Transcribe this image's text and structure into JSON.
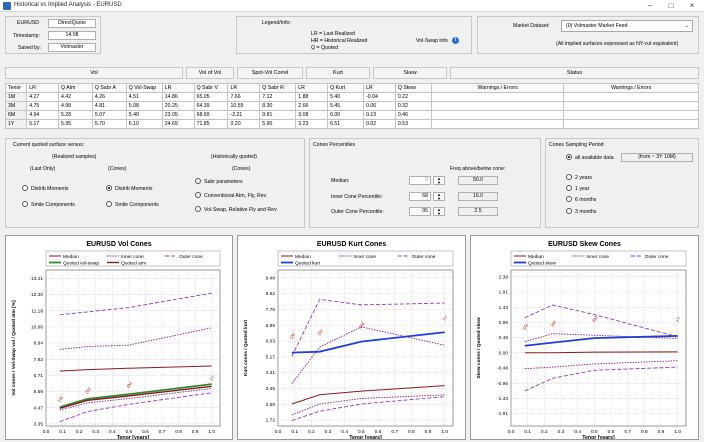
{
  "window": {
    "title": "Historical vs Implied Analysis - EURUSD"
  },
  "header": {
    "symbol": "EURUSD",
    "quote_type": "DirectQuote",
    "timestamp_label": "Timestamp:",
    "timestamp": "14:08",
    "saved_by_label": "Saved by:",
    "saved_by": "Volmaster"
  },
  "legend": {
    "title": "Legend/Info:",
    "lines": [
      "LR  = Last Realized",
      "HR  = Historical Realized",
      "Q    = Quoted"
    ],
    "volswap_info": "Vol-Swap info"
  },
  "market": {
    "label": "Market Dataset:",
    "value": "(0) Volmaster Market Feed",
    "note": "(All implied surfaces expressed as NY-cut equivalent)"
  },
  "group_headers": [
    "Vol",
    "Vol of Vol",
    "Spot-Vol Correl",
    "Kurt",
    "Skew",
    "Status"
  ],
  "table": {
    "columns": [
      "Tenor",
      "LR",
      "Q Atm",
      "Q Sabr A",
      "Q Vol-Swap",
      "LR",
      "Q Sabr V",
      "LR",
      "Q Sabr R",
      "LR",
      "Q Kurt",
      "LR",
      "Q Skew",
      "Warnings / Errors",
      "Warnings / Errors"
    ],
    "rows": [
      [
        "1M",
        "4.27",
        "4.42",
        "4.26",
        "4.51",
        "14.86",
        "65.05",
        "7.66",
        "7.12",
        "1.88",
        "5.40",
        "-0.04",
        "0.22",
        "",
        ""
      ],
      [
        "3M",
        "4.75",
        "4.98",
        "4.81",
        "5.08",
        "20.25",
        "64.39",
        "10.55",
        "8.30",
        "2.66",
        "5.45",
        "0.06",
        "0.32",
        "",
        ""
      ],
      [
        "6M",
        "4.94",
        "5.28",
        "5.07",
        "5.40",
        "23.05",
        "68.69",
        "-2.21",
        "9.81",
        "3.08",
        "6.00",
        "0.13",
        "0.46",
        "",
        ""
      ],
      [
        "1Y",
        "5.17",
        "5.95",
        "5.70",
        "6.10",
        "24.69",
        "71.85",
        "0.20",
        "5.90",
        "3.23",
        "6.51",
        "0.02",
        "0.53",
        "",
        ""
      ]
    ]
  },
  "surface": {
    "title": "Current quoted surface versus:",
    "realized_label": "(Realized samples)",
    "last_only": "(Last Only)",
    "cones_label": "(Cones)",
    "hist_label": "(Historically quoted)",
    "hist_cones_label": "(Cones)",
    "options_left": [
      "Distrib Moments",
      "Smile Components"
    ],
    "options_mid": [
      "Distrib Moments",
      "Smile Components"
    ],
    "options_right": [
      "Sabr parameters",
      "Conventional Atm, Fly, Rev",
      "Vol-Swap, Relative Fly and Rev"
    ]
  },
  "percentiles": {
    "title": "Cones Percentiles",
    "freq_label": "Freq above/below cone:",
    "rows": [
      {
        "label": "Median:",
        "value": "0",
        "freq": "50.0"
      },
      {
        "label": "Inner Cone Percentile:",
        "value": "68",
        "freq": "16.0"
      },
      {
        "label": "Outer Cone Percentile:",
        "value": "95",
        "freq": "2.5"
      }
    ]
  },
  "sampling": {
    "title": "Cones Sampling Period",
    "all_label": "all available data",
    "all_range": "(from ~ 3Y 10M)",
    "options": [
      "2 years",
      "1 year",
      "6 months",
      "3 months"
    ]
  },
  "colors": {
    "median": "#8b1a1a",
    "inner": "#8b1a8b",
    "outer": "#9932cc",
    "quoted": "#1f3fd6",
    "volswap": "#2e8b2e"
  },
  "chart_data": [
    {
      "type": "line",
      "title": "EURUSD   Vol Cones",
      "xlabel": "Tenor [years]",
      "ylabel": "Vol cones / Vol-Swap vol / Quoted atm [%]",
      "xlim": [
        0,
        1.05
      ],
      "ylim": [
        3.2,
        14.0
      ],
      "xticks": [
        "0.0",
        "0.1",
        "0.2",
        "0.3",
        "0.4",
        "0.5",
        "0.6",
        "0.7",
        "0.8",
        "0.9",
        "1.0"
      ],
      "yticks": [
        "3.35",
        "4.47",
        "5.59",
        "6.71",
        "7.82",
        "8.94",
        "10.06",
        "11.18",
        "12.30",
        "13.41"
      ],
      "legend": [
        "Median",
        "Inner cone",
        "Outer cone",
        "Quoted vol-swap",
        "Quoted atm"
      ],
      "x": [
        0.083,
        0.25,
        0.5,
        1.0
      ],
      "series": [
        {
          "name": "Outer cone",
          "values": [
            10.9,
            11.1,
            11.4,
            12.4
          ]
        },
        {
          "name": "Inner cone",
          "values": [
            8.5,
            8.7,
            8.8,
            10.0
          ]
        },
        {
          "name": "Median",
          "values": [
            7.0,
            7.1,
            7.2,
            7.35
          ]
        },
        {
          "name": "Quoted vol-swap",
          "values": [
            4.51,
            5.08,
            5.4,
            6.1
          ]
        },
        {
          "name": "Quoted atm",
          "values": [
            4.42,
            4.98,
            5.28,
            5.95
          ]
        },
        {
          "name": "Inner cone",
          "values": [
            4.3,
            4.8,
            5.1,
            5.8
          ]
        },
        {
          "name": "Outer cone",
          "values": [
            3.5,
            4.2,
            4.7,
            5.5
          ]
        }
      ],
      "tenor_labels": [
        "1M",
        "3M",
        "6M",
        "1Y"
      ],
      "label_values": [
        4.8,
        5.4,
        5.8,
        6.3
      ]
    },
    {
      "type": "line",
      "title": "EURUSD   Kurt Cones",
      "xlabel": "Tenor [years]",
      "ylabel": "Kurt cones / Quoted kurt",
      "xlim": [
        0,
        1.05
      ],
      "ylim": [
        1.4,
        9.9
      ],
      "xticks": [
        "0.0",
        "0.1",
        "0.2",
        "0.3",
        "0.4",
        "0.5",
        "0.6",
        "0.7",
        "0.8",
        "0.9",
        "1.0"
      ],
      "yticks": [
        "1.72",
        "2.58",
        "3.45",
        "4.31",
        "5.17",
        "6.03",
        "6.89",
        "7.76",
        "8.62",
        "9.48"
      ],
      "legend": [
        "Median",
        "Inner cone",
        "Outer cone",
        "Quoted kurt"
      ],
      "x": [
        0.083,
        0.25,
        0.5,
        1.0
      ],
      "series": [
        {
          "name": "Outer cone",
          "values": [
            5.2,
            8.3,
            8.0,
            8.1
          ]
        },
        {
          "name": "Inner cone",
          "values": [
            3.7,
            5.7,
            6.8,
            5.8
          ]
        },
        {
          "name": "Median",
          "values": [
            2.6,
            3.1,
            3.3,
            3.6
          ]
        },
        {
          "name": "Inner cone",
          "values": [
            2.0,
            2.6,
            2.9,
            3.1
          ]
        },
        {
          "name": "Outer cone",
          "values": [
            1.7,
            2.2,
            2.6,
            3.0
          ]
        },
        {
          "name": "Quoted kurt",
          "values": [
            5.4,
            5.45,
            6.0,
            6.51
          ]
        }
      ],
      "tenor_labels": [
        "1M",
        "3M",
        "6M",
        "1Y"
      ],
      "label_values": [
        6.1,
        6.3,
        6.7,
        7.1
      ]
    },
    {
      "type": "line",
      "title": "EURUSD   Skew Cones",
      "xlabel": "Tenor [years]",
      "ylabel": "Skew cones / Quoted skew",
      "xlim": [
        0,
        1.05
      ],
      "ylim": [
        -2.3,
        2.6
      ],
      "xticks": [
        "0.0",
        "0.1",
        "0.2",
        "0.3",
        "0.4",
        "0.5",
        "0.6",
        "0.7",
        "0.8",
        "0.9",
        "1.0"
      ],
      "yticks": [
        "-1.91",
        "-1.43",
        "-0.96",
        "-0.48",
        "0.00",
        "0.48",
        "0.96",
        "1.43",
        "1.91",
        "2.39"
      ],
      "legend": [
        "Median",
        "Inner cone",
        "Outer cone",
        "Quoted skew"
      ],
      "x": [
        0.083,
        0.25,
        0.5,
        1.0
      ],
      "series": [
        {
          "name": "Outer cone",
          "values": [
            1.1,
            1.5,
            1.2,
            0.5
          ]
        },
        {
          "name": "Inner cone",
          "values": [
            0.35,
            0.6,
            0.55,
            0.45
          ]
        },
        {
          "name": "Median",
          "values": [
            0.0,
            0.0,
            0.02,
            0.03
          ]
        },
        {
          "name": "Inner cone",
          "values": [
            -0.5,
            -0.45,
            -0.35,
            -0.25
          ]
        },
        {
          "name": "Outer cone",
          "values": [
            -1.2,
            -0.8,
            -0.55,
            -0.45
          ]
        },
        {
          "name": "Quoted skew",
          "values": [
            0.22,
            0.32,
            0.46,
            0.53
          ]
        }
      ],
      "tenor_labels": [
        "1M",
        "3M",
        "6M",
        "1Y"
      ],
      "label_values": [
        0.7,
        0.8,
        0.95,
        0.95
      ]
    }
  ]
}
